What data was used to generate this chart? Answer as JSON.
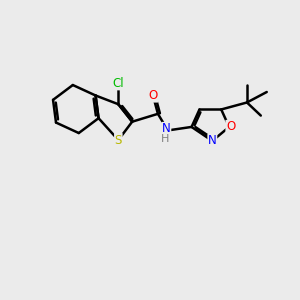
{
  "background_color": "#ebebeb",
  "bond_color": "#000000",
  "bond_width": 1.8,
  "figsize": [
    3.0,
    3.0
  ],
  "dpi": 100,
  "atom_colors": {
    "S": "#b8b800",
    "O": "#ff0000",
    "N": "#0000ff",
    "Cl": "#00bb00",
    "C": "#000000"
  },
  "font_size": 8.5,
  "xlim": [
    0,
    10
  ],
  "ylim": [
    0,
    10
  ]
}
